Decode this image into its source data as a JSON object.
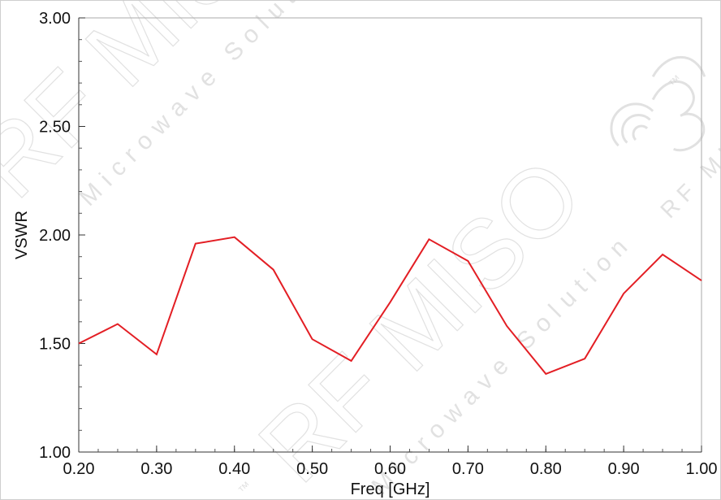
{
  "chart_data": {
    "type": "line",
    "title": "",
    "xlabel": "Freq [GHz]",
    "ylabel": "VSWR",
    "xlim": [
      0.2,
      1.0
    ],
    "ylim": [
      1.0,
      3.0
    ],
    "x_ticks": [
      "0.20",
      "0.30",
      "0.40",
      "0.50",
      "0.60",
      "0.70",
      "0.80",
      "0.90",
      "1.00"
    ],
    "y_ticks": [
      "1.00",
      "1.50",
      "2.00",
      "2.50",
      "3.00"
    ],
    "x_tick_values": [
      0.2,
      0.3,
      0.4,
      0.5,
      0.6,
      0.7,
      0.8,
      0.9,
      1.0
    ],
    "y_tick_values": [
      1.0,
      1.5,
      2.0,
      2.5,
      3.0
    ],
    "grid": false,
    "series": [
      {
        "color": "#e31e24",
        "x": [
          0.2,
          0.25,
          0.3,
          0.35,
          0.4,
          0.45,
          0.5,
          0.55,
          0.6,
          0.65,
          0.7,
          0.75,
          0.8,
          0.85,
          0.9,
          0.95,
          1.0
        ],
        "y": [
          1.5,
          1.59,
          1.45,
          1.96,
          1.99,
          1.84,
          1.52,
          1.42,
          1.69,
          1.98,
          1.88,
          1.58,
          1.36,
          1.43,
          1.73,
          1.91,
          1.79
        ]
      }
    ]
  },
  "watermark": {
    "brand": "RF MISO",
    "tagline": "Microwave Solution",
    "trademark": "™",
    "logo_icon": "rf-miso-logo-icon"
  }
}
